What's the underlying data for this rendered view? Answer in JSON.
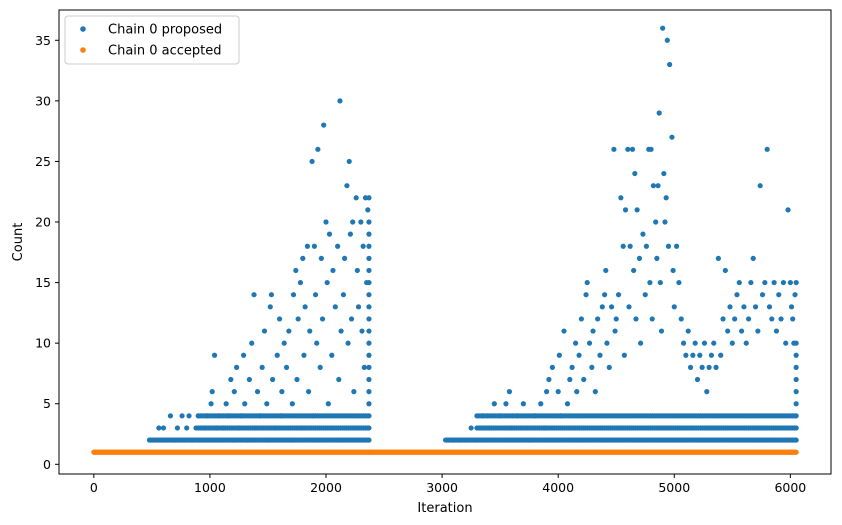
{
  "chart_data": {
    "type": "scatter",
    "title": "",
    "xlabel": "Iteration",
    "ylabel": "Count",
    "xlim": [
      -300,
      6350
    ],
    "ylim": [
      -0.8,
      37.5
    ],
    "xticks": [
      0,
      1000,
      2000,
      3000,
      4000,
      5000,
      6000
    ],
    "yticks": [
      0,
      5,
      10,
      15,
      20,
      25,
      30,
      35
    ],
    "grid": false,
    "legend_position": "top-left",
    "series": [
      {
        "name": "Chain 0 proposed",
        "color": "#1f77b4",
        "points": [
          [
            480,
            2
          ],
          [
            520,
            2
          ],
          [
            560,
            3
          ],
          [
            600,
            3
          ],
          [
            620,
            2
          ],
          [
            660,
            4
          ],
          [
            700,
            2
          ],
          [
            720,
            3
          ],
          [
            760,
            4
          ],
          [
            780,
            2
          ],
          [
            800,
            3
          ],
          [
            820,
            4
          ],
          [
            850,
            2
          ],
          [
            880,
            3
          ],
          [
            900,
            4
          ],
          [
            930,
            2
          ],
          [
            960,
            3
          ],
          [
            980,
            4
          ],
          [
            1000,
            2
          ],
          [
            1010,
            5
          ],
          [
            1020,
            6
          ],
          [
            1040,
            9
          ],
          [
            1060,
            3
          ],
          [
            1080,
            4
          ],
          [
            1100,
            2
          ],
          [
            1120,
            3
          ],
          [
            1140,
            5
          ],
          [
            1160,
            4
          ],
          [
            1180,
            7
          ],
          [
            1200,
            2
          ],
          [
            1210,
            6
          ],
          [
            1230,
            8
          ],
          [
            1250,
            3
          ],
          [
            1270,
            4
          ],
          [
            1290,
            9
          ],
          [
            1300,
            5
          ],
          [
            1320,
            2
          ],
          [
            1340,
            7
          ],
          [
            1360,
            10
          ],
          [
            1380,
            14
          ],
          [
            1390,
            3
          ],
          [
            1410,
            6
          ],
          [
            1430,
            4
          ],
          [
            1450,
            8
          ],
          [
            1470,
            11
          ],
          [
            1490,
            5
          ],
          [
            1500,
            2
          ],
          [
            1520,
            13
          ],
          [
            1530,
            14
          ],
          [
            1540,
            7
          ],
          [
            1560,
            3
          ],
          [
            1580,
            9
          ],
          [
            1600,
            12
          ],
          [
            1610,
            4
          ],
          [
            1620,
            6
          ],
          [
            1640,
            10
          ],
          [
            1660,
            8
          ],
          [
            1680,
            11
          ],
          [
            1700,
            2
          ],
          [
            1710,
            5
          ],
          [
            1720,
            14
          ],
          [
            1740,
            16
          ],
          [
            1750,
            7
          ],
          [
            1760,
            12
          ],
          [
            1780,
            15
          ],
          [
            1790,
            3
          ],
          [
            1800,
            17
          ],
          [
            1810,
            9
          ],
          [
            1820,
            13
          ],
          [
            1840,
            18
          ],
          [
            1850,
            6
          ],
          [
            1860,
            11
          ],
          [
            1880,
            25
          ],
          [
            1890,
            4
          ],
          [
            1900,
            18
          ],
          [
            1910,
            14
          ],
          [
            1920,
            10
          ],
          [
            1930,
            26
          ],
          [
            1950,
            8
          ],
          [
            1960,
            17
          ],
          [
            1970,
            12
          ],
          [
            1980,
            28
          ],
          [
            2000,
            20
          ],
          [
            2010,
            15
          ],
          [
            2020,
            5
          ],
          [
            2030,
            19
          ],
          [
            2050,
            9
          ],
          [
            2060,
            16
          ],
          [
            2080,
            13
          ],
          [
            2100,
            18
          ],
          [
            2110,
            7
          ],
          [
            2120,
            30
          ],
          [
            2130,
            11
          ],
          [
            2150,
            14
          ],
          [
            2160,
            17
          ],
          [
            2180,
            23
          ],
          [
            2190,
            10
          ],
          [
            2200,
            25
          ],
          [
            2210,
            19
          ],
          [
            2220,
            12
          ],
          [
            2230,
            20
          ],
          [
            2240,
            6
          ],
          [
            2260,
            22
          ],
          [
            2270,
            16
          ],
          [
            2280,
            13
          ],
          [
            2300,
            20
          ],
          [
            2310,
            11
          ],
          [
            2320,
            18
          ],
          [
            2330,
            8
          ],
          [
            2340,
            22
          ],
          [
            2350,
            15
          ],
          [
            2360,
            21
          ],
          [
            2370,
            12
          ],
          [
            2370,
            10
          ],
          [
            2370,
            5
          ],
          [
            2370,
            3
          ],
          [
            2370,
            2
          ],
          [
            2370,
            4
          ],
          [
            2370,
            6
          ],
          [
            2370,
            7
          ],
          [
            2370,
            8
          ],
          [
            2370,
            9
          ],
          [
            2370,
            11
          ],
          [
            2370,
            13
          ],
          [
            2370,
            14
          ],
          [
            2370,
            15
          ],
          [
            2370,
            16
          ],
          [
            2370,
            17
          ],
          [
            2370,
            18
          ],
          [
            2370,
            19
          ],
          [
            2370,
            20
          ],
          [
            2370,
            22
          ],
          [
            3050,
            2
          ],
          [
            3100,
            2
          ],
          [
            3150,
            2
          ],
          [
            3200,
            2
          ],
          [
            3250,
            3
          ],
          [
            3300,
            2
          ],
          [
            3350,
            4
          ],
          [
            3400,
            3
          ],
          [
            3450,
            5
          ],
          [
            3500,
            4
          ],
          [
            3550,
            5
          ],
          [
            3580,
            6
          ],
          [
            3600,
            3
          ],
          [
            3650,
            4
          ],
          [
            3700,
            5
          ],
          [
            3750,
            2
          ],
          [
            3800,
            4
          ],
          [
            3850,
            5
          ],
          [
            3880,
            3
          ],
          [
            3900,
            6
          ],
          [
            3920,
            7
          ],
          [
            3950,
            8
          ],
          [
            4000,
            6
          ],
          [
            4010,
            9
          ],
          [
            4020,
            4
          ],
          [
            4050,
            11
          ],
          [
            4080,
            5
          ],
          [
            4100,
            7
          ],
          [
            4120,
            8
          ],
          [
            4150,
            10
          ],
          [
            4160,
            6
          ],
          [
            4180,
            9
          ],
          [
            4200,
            12
          ],
          [
            4220,
            7
          ],
          [
            4240,
            14
          ],
          [
            4250,
            15
          ],
          [
            4270,
            10
          ],
          [
            4290,
            8
          ],
          [
            4300,
            11
          ],
          [
            4320,
            6
          ],
          [
            4340,
            12
          ],
          [
            4360,
            9
          ],
          [
            4380,
            13
          ],
          [
            4400,
            14
          ],
          [
            4410,
            16
          ],
          [
            4420,
            10
          ],
          [
            4440,
            8
          ],
          [
            4460,
            13
          ],
          [
            4480,
            26
          ],
          [
            4490,
            11
          ],
          [
            4500,
            12
          ],
          [
            4520,
            14
          ],
          [
            4540,
            22
          ],
          [
            4560,
            18
          ],
          [
            4570,
            9
          ],
          [
            4580,
            21
          ],
          [
            4600,
            26
          ],
          [
            4610,
            13
          ],
          [
            4620,
            18
          ],
          [
            4640,
            26
          ],
          [
            4650,
            16
          ],
          [
            4660,
            24
          ],
          [
            4670,
            12
          ],
          [
            4680,
            21
          ],
          [
            4700,
            17
          ],
          [
            4710,
            10
          ],
          [
            4730,
            19
          ],
          [
            4750,
            14
          ],
          [
            4760,
            18
          ],
          [
            4780,
            26
          ],
          [
            4790,
            15
          ],
          [
            4800,
            26
          ],
          [
            4810,
            12
          ],
          [
            4820,
            23
          ],
          [
            4840,
            20
          ],
          [
            4850,
            17
          ],
          [
            4860,
            23
          ],
          [
            4870,
            29
          ],
          [
            4880,
            15
          ],
          [
            4890,
            11
          ],
          [
            4900,
            36
          ],
          [
            4910,
            24
          ],
          [
            4920,
            20
          ],
          [
            4930,
            22
          ],
          [
            4940,
            35
          ],
          [
            4950,
            18
          ],
          [
            4960,
            33
          ],
          [
            4980,
            27
          ],
          [
            4990,
            16
          ],
          [
            5000,
            13
          ],
          [
            5020,
            18
          ],
          [
            5040,
            15
          ],
          [
            5060,
            12
          ],
          [
            5080,
            10
          ],
          [
            5100,
            9
          ],
          [
            5120,
            11
          ],
          [
            5140,
            8
          ],
          [
            5160,
            9
          ],
          [
            5180,
            10
          ],
          [
            5200,
            7
          ],
          [
            5220,
            9
          ],
          [
            5240,
            8
          ],
          [
            5260,
            10
          ],
          [
            5280,
            6
          ],
          [
            5300,
            8
          ],
          [
            5320,
            9
          ],
          [
            5340,
            10
          ],
          [
            5360,
            8
          ],
          [
            5380,
            17
          ],
          [
            5400,
            9
          ],
          [
            5420,
            12
          ],
          [
            5440,
            16
          ],
          [
            5460,
            11
          ],
          [
            5480,
            13
          ],
          [
            5500,
            10
          ],
          [
            5520,
            12
          ],
          [
            5540,
            14
          ],
          [
            5560,
            15
          ],
          [
            5580,
            11
          ],
          [
            5600,
            13
          ],
          [
            5620,
            10
          ],
          [
            5640,
            12
          ],
          [
            5660,
            15
          ],
          [
            5680,
            17
          ],
          [
            5700,
            13
          ],
          [
            5720,
            11
          ],
          [
            5740,
            23
          ],
          [
            5760,
            14
          ],
          [
            5780,
            15
          ],
          [
            5800,
            26
          ],
          [
            5820,
            13
          ],
          [
            5840,
            12
          ],
          [
            5860,
            15
          ],
          [
            5880,
            11
          ],
          [
            5900,
            14
          ],
          [
            5920,
            12
          ],
          [
            5940,
            15
          ],
          [
            5960,
            10
          ],
          [
            5980,
            21
          ],
          [
            6000,
            15
          ],
          [
            6010,
            13
          ],
          [
            6020,
            12
          ],
          [
            6030,
            10
          ],
          [
            6040,
            14
          ],
          [
            6050,
            15
          ],
          [
            6050,
            10
          ],
          [
            6050,
            9
          ],
          [
            6050,
            8
          ],
          [
            6050,
            7
          ],
          [
            6050,
            6
          ],
          [
            6050,
            5
          ],
          [
            6050,
            4
          ],
          [
            6050,
            3
          ],
          [
            6050,
            2
          ]
        ]
      },
      {
        "name": "Chain 0 accepted",
        "color": "#ff7f0e",
        "segments": [
          [
            0,
            2370,
            1
          ],
          [
            2370,
            3050,
            1
          ],
          [
            3050,
            6050,
            1
          ]
        ]
      }
    ]
  }
}
